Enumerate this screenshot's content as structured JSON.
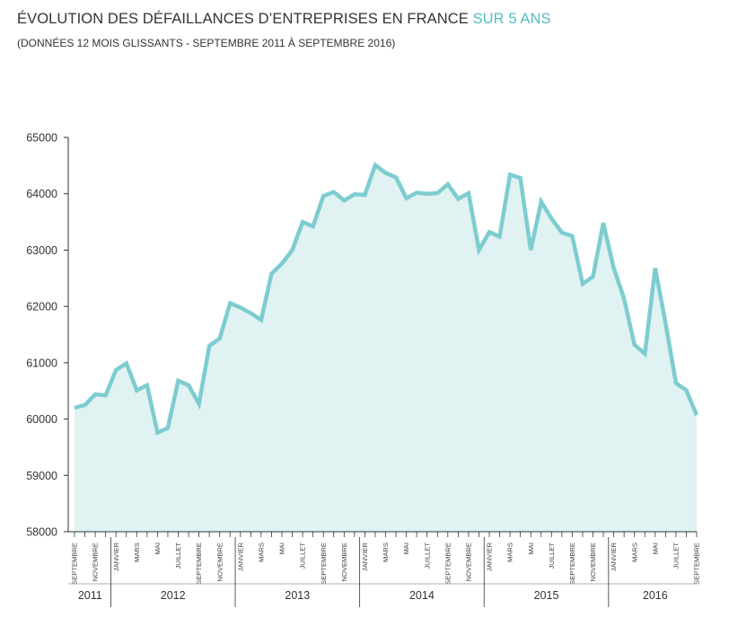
{
  "title": {
    "main": "ÉVOLUTION DES DÉFAILLANCES D’ENTREPRISES EN FRANCE",
    "highlight": "SUR 5 ANS"
  },
  "subtitle": "(DONNÉES 12 MOIS GLISSANTS - SEPTEMBRE 2011 À SEPTEMBRE 2016)",
  "colors": {
    "line": "#7dcdd0",
    "area": "#e0f2f2",
    "highlight": "#54bcc4",
    "axis": "#333333"
  },
  "chart_data": {
    "type": "area",
    "title": "ÉVOLUTION DES DÉFAILLANCES D’ENTREPRISES EN FRANCE SUR 5 ANS",
    "subtitle": "(DONNÉES 12 MOIS GLISSANTS - SEPTEMBRE 2011 À SEPTEMBRE 2016)",
    "ylim": [
      58000,
      65000
    ],
    "yticks": [
      58000,
      59000,
      60000,
      61000,
      62000,
      63000,
      64000,
      65000
    ],
    "grid": false,
    "x_start": "2011-09",
    "values": [
      60200,
      60250,
      60440,
      60420,
      60870,
      60990,
      60510,
      60600,
      59760,
      59840,
      60680,
      60600,
      60270,
      61300,
      61430,
      62060,
      61980,
      61880,
      61760,
      62580,
      62760,
      63000,
      63500,
      63420,
      63960,
      64030,
      63880,
      63990,
      63980,
      64510,
      64370,
      64290,
      63920,
      64020,
      64000,
      64010,
      64170,
      63910,
      64010,
      63000,
      63320,
      63240,
      64340,
      64280,
      63000,
      63860,
      63560,
      63310,
      63250,
      62400,
      62530,
      63480,
      62680,
      62140,
      61320,
      61160,
      62680,
      61700,
      60640,
      60510,
      60070
    ],
    "month_labels": [
      {
        "i": 0,
        "label": "SEPTEMBRE"
      },
      {
        "i": 2,
        "label": "NOVEMBRE"
      },
      {
        "i": 4,
        "label": "JANVIER"
      },
      {
        "i": 6,
        "label": "MARS"
      },
      {
        "i": 8,
        "label": "MAI"
      },
      {
        "i": 10,
        "label": "JUILLET"
      },
      {
        "i": 12,
        "label": "SEPTEMBRE"
      },
      {
        "i": 14,
        "label": "NOVEMBRE"
      },
      {
        "i": 16,
        "label": "JANVIER"
      },
      {
        "i": 18,
        "label": "MARS"
      },
      {
        "i": 20,
        "label": "MAI"
      },
      {
        "i": 22,
        "label": "JUILLET"
      },
      {
        "i": 24,
        "label": "SEPTEMBRE"
      },
      {
        "i": 26,
        "label": "NOVEMBRE"
      },
      {
        "i": 28,
        "label": "JANVIER"
      },
      {
        "i": 30,
        "label": "MARS"
      },
      {
        "i": 32,
        "label": "MAI"
      },
      {
        "i": 34,
        "label": "JUILLET"
      },
      {
        "i": 36,
        "label": "SEPTEMBRE"
      },
      {
        "i": 38,
        "label": "NOVEMBRE"
      },
      {
        "i": 40,
        "label": "JANVIER"
      },
      {
        "i": 42,
        "label": "MARS"
      },
      {
        "i": 44,
        "label": "MAI"
      },
      {
        "i": 46,
        "label": "JUILLET"
      },
      {
        "i": 48,
        "label": "SEPTEMBRE"
      },
      {
        "i": 50,
        "label": "NOVEMBRE"
      },
      {
        "i": 52,
        "label": "JANVIER"
      },
      {
        "i": 54,
        "label": "MARS"
      },
      {
        "i": 56,
        "label": "MAI"
      },
      {
        "i": 58,
        "label": "JUILLET"
      },
      {
        "i": 60,
        "label": "SEPTEMBRE"
      }
    ],
    "years": [
      {
        "label": "2011",
        "from": 0,
        "to": 3
      },
      {
        "label": "2012",
        "from": 4,
        "to": 15
      },
      {
        "label": "2013",
        "from": 16,
        "to": 27
      },
      {
        "label": "2014",
        "from": 28,
        "to": 39
      },
      {
        "label": "2015",
        "from": 40,
        "to": 51
      },
      {
        "label": "2016",
        "from": 52,
        "to": 60
      }
    ]
  }
}
